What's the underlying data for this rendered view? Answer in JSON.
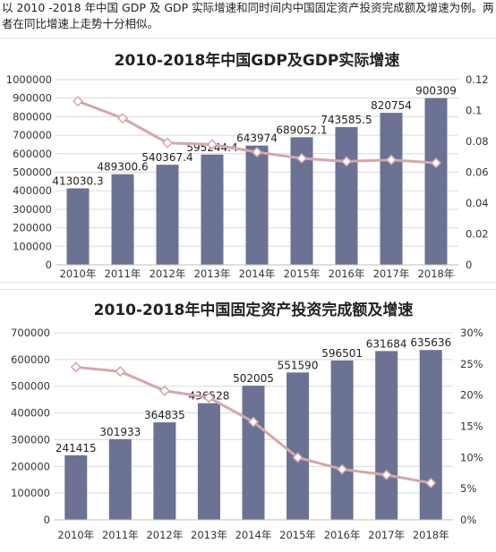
{
  "intro_text": "以 2010 -2018 年中国 GDP 及 GDP 实际增速和同时间内中国固定资产投资完成额及增速为例。两者在同比增速上走势十分相似。",
  "colors": {
    "bar": "#6b7293",
    "line": "#d4a7aa",
    "marker_fill": "#ffffff"
  },
  "chart_data": [
    {
      "type": "bar",
      "title": "2010-2018年中国GDP及GDP实际增速",
      "categories": [
        "2010年",
        "2011年",
        "2012年",
        "2013年",
        "2014年",
        "2015年",
        "2016年",
        "2017年",
        "2018年"
      ],
      "series": [
        {
          "values": [
            413030.3,
            489300.6,
            540367.4,
            595244.4,
            643974,
            689052.1,
            743585.5,
            820754,
            900309
          ],
          "labels": [
            "413030.3",
            "489300.6",
            "540367.4",
            "595244.4",
            "643974",
            "689052.1",
            "743585.5",
            "820754",
            "900309"
          ]
        },
        {
          "type": "line",
          "axis": "right",
          "values": [
            0.106,
            0.095,
            0.079,
            0.078,
            0.073,
            0.069,
            0.067,
            0.068,
            0.066
          ]
        }
      ],
      "ylim": [
        0,
        1000000
      ],
      "y_ticks": [
        "0",
        "100000",
        "200000",
        "300000",
        "400000",
        "500000",
        "600000",
        "700000",
        "800000",
        "900000",
        "1000000"
      ],
      "y2lim": [
        0,
        0.12
      ],
      "y2_ticks": [
        "0",
        "0.02",
        "0.04",
        "0.06",
        "0.08",
        "0.1",
        "0.12"
      ],
      "grid": true,
      "legend": "none"
    },
    {
      "type": "bar",
      "title": "2010-2018年中国固定资产投资完成额及增速",
      "categories": [
        "2010年",
        "2011年",
        "2012年",
        "2013年",
        "2014年",
        "2015年",
        "2016年",
        "2017年",
        "2018年"
      ],
      "series": [
        {
          "values": [
            241415,
            301933,
            364835,
            436528,
            502005,
            551590,
            596501,
            631684,
            635636
          ],
          "labels": [
            "241415",
            "301933",
            "364835",
            "436528",
            "502005",
            "551590",
            "596501",
            "631684",
            "635636"
          ]
        },
        {
          "type": "line",
          "axis": "right",
          "values": [
            0.245,
            0.238,
            0.207,
            0.196,
            0.157,
            0.1,
            0.081,
            0.072,
            0.059
          ]
        }
      ],
      "ylim": [
        0,
        700000
      ],
      "y_ticks": [
        "0",
        "100000",
        "200000",
        "300000",
        "400000",
        "500000",
        "600000",
        "700000"
      ],
      "y2lim": [
        0,
        0.3
      ],
      "y2_ticks": [
        "0%",
        "5%",
        "10%",
        "15%",
        "20%",
        "25%",
        "30%"
      ],
      "grid": true,
      "legend": "none"
    }
  ]
}
